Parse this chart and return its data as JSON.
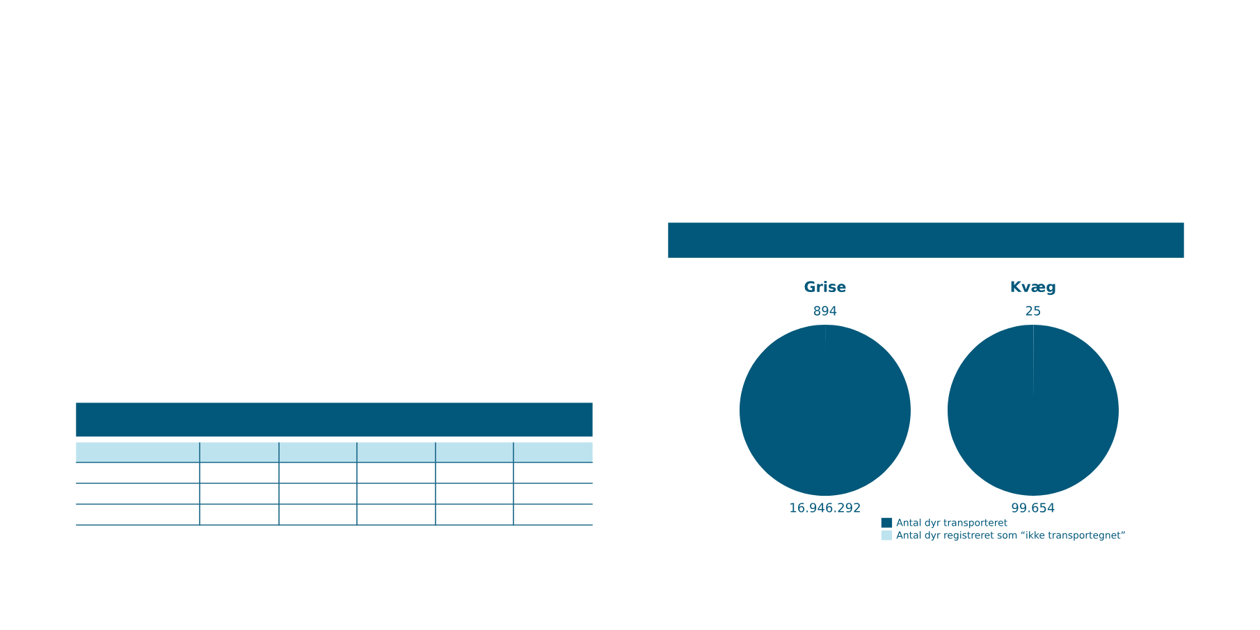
{
  "chart_data": [
    {
      "type": "pie",
      "title": "Grise",
      "categories": [
        "Antal dyr transporteret",
        "Antal dyr registreret som “ikke transportegnet”"
      ],
      "values": [
        16946292,
        894
      ],
      "colors": [
        "#02587a",
        "#bde3ef"
      ],
      "value_labels": [
        "16.946.292",
        "894"
      ],
      "legend": "bottom"
    },
    {
      "type": "pie",
      "title": "Kvæg",
      "categories": [
        null,
        null
      ],
      "values": [
        99654,
        25
      ],
      "colors": [
        "#02587a",
        "#bde3ef"
      ],
      "value_labels": [
        "99.654",
        "25"
      ]
    }
  ]
}
